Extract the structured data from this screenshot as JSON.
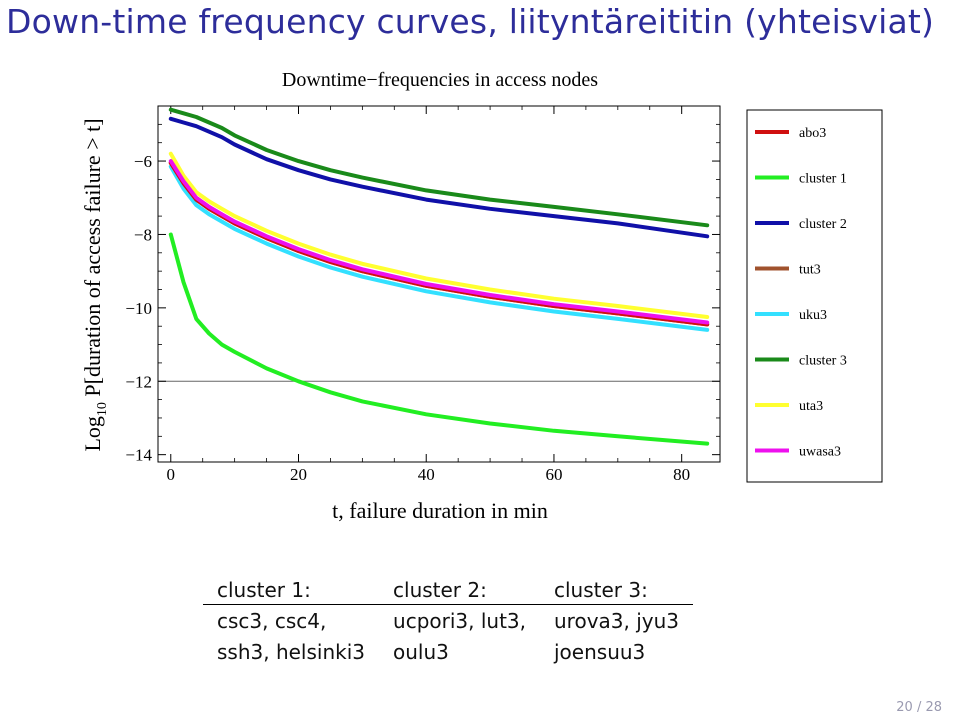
{
  "slide": {
    "title": "Down-time frequency curves, liityntäreititin (yhteisviat)",
    "page_number": "20 / 28"
  },
  "chart_data": {
    "type": "line",
    "title": "Downtime−frequencies in access nodes",
    "xlabel": "t, failure duration in min",
    "ylabel_prefix": "Log",
    "ylabel_sub": "10",
    "ylabel_rest": " P[duration of access failure > t]",
    "xlim": [
      -2,
      86
    ],
    "ylim": [
      -14.2,
      -4.5
    ],
    "xticks": [
      0,
      20,
      40,
      60,
      80
    ],
    "yticks": [
      -6,
      -8,
      -10,
      -12,
      -14
    ],
    "grid": false,
    "reference_line_y": -12,
    "legend_position": "right",
    "x": [
      0,
      2,
      4,
      6,
      8,
      10,
      15,
      20,
      25,
      30,
      40,
      50,
      60,
      70,
      84
    ],
    "series": [
      {
        "name": "abo3",
        "color": "#d01010",
        "values": [
          -6.05,
          -6.6,
          -7.05,
          -7.3,
          -7.5,
          -7.7,
          -8.1,
          -8.45,
          -8.75,
          -9.0,
          -9.4,
          -9.7,
          -9.95,
          -10.15,
          -10.45
        ]
      },
      {
        "name": "cluster 1",
        "color": "#22ee22",
        "values": [
          -8.0,
          -9.3,
          -10.3,
          -10.7,
          -11.0,
          -11.2,
          -11.65,
          -12.0,
          -12.3,
          -12.55,
          -12.9,
          -13.15,
          -13.35,
          -13.5,
          -13.7
        ]
      },
      {
        "name": "cluster 2",
        "color": "#1010a8",
        "values": [
          -4.85,
          -4.95,
          -5.05,
          -5.2,
          -5.35,
          -5.55,
          -5.95,
          -6.25,
          -6.5,
          -6.7,
          -7.05,
          -7.3,
          -7.5,
          -7.7,
          -8.05
        ]
      },
      {
        "name": "tut3",
        "color": "#a0522d",
        "values": [
          -6.05,
          -6.6,
          -7.05,
          -7.3,
          -7.5,
          -7.7,
          -8.1,
          -8.45,
          -8.75,
          -9.0,
          -9.4,
          -9.7,
          -9.95,
          -10.15,
          -10.45
        ]
      },
      {
        "name": "uku3",
        "color": "#33e0ff",
        "values": [
          -6.15,
          -6.75,
          -7.2,
          -7.45,
          -7.65,
          -7.85,
          -8.25,
          -8.6,
          -8.9,
          -9.15,
          -9.55,
          -9.85,
          -10.1,
          -10.3,
          -10.6
        ]
      },
      {
        "name": "cluster 3",
        "color": "#1a8a1a",
        "values": [
          -4.6,
          -4.7,
          -4.8,
          -4.95,
          -5.1,
          -5.3,
          -5.7,
          -6.0,
          -6.25,
          -6.45,
          -6.8,
          -7.05,
          -7.25,
          -7.45,
          -7.75
        ]
      },
      {
        "name": "uta3",
        "color": "#ffff30",
        "values": [
          -5.8,
          -6.4,
          -6.85,
          -7.1,
          -7.3,
          -7.5,
          -7.9,
          -8.25,
          -8.55,
          -8.8,
          -9.2,
          -9.5,
          -9.75,
          -9.95,
          -10.25
        ]
      },
      {
        "name": "uwasa3",
        "color": "#ee10ee",
        "values": [
          -6.0,
          -6.55,
          -7.0,
          -7.25,
          -7.45,
          -7.65,
          -8.05,
          -8.4,
          -8.7,
          -8.95,
          -9.35,
          -9.65,
          -9.9,
          -10.1,
          -10.4
        ]
      }
    ]
  },
  "clusters_table": {
    "headers": [
      "cluster 1:",
      "cluster 2:",
      "cluster 3:"
    ],
    "rows": [
      [
        "csc3, csc4,",
        "ucpori3, lut3,",
        "urova3, jyu3"
      ],
      [
        "ssh3, helsinki3",
        "oulu3",
        "joensuu3"
      ]
    ]
  }
}
